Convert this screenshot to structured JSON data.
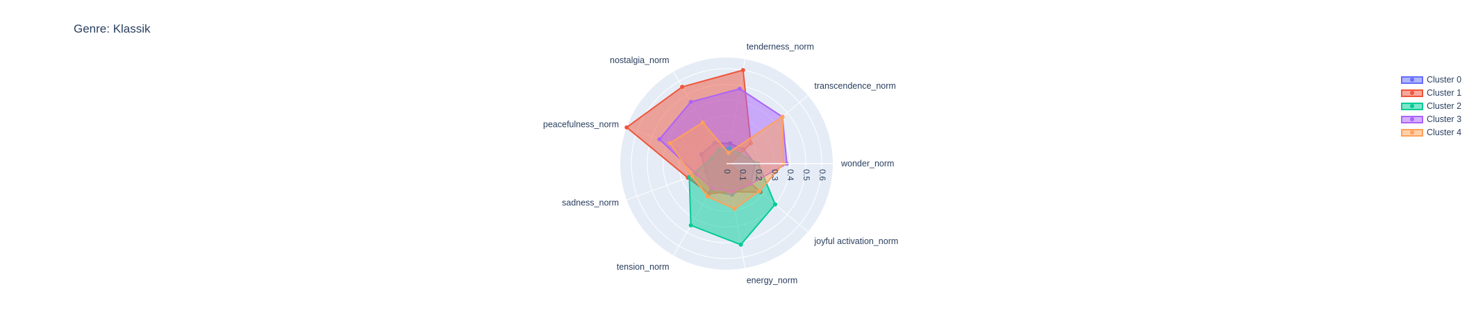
{
  "chart_data": {
    "type": "radar",
    "title": "Genre: Klassik",
    "axes": [
      "wonder_norm",
      "transcendence_norm",
      "tenderness_norm",
      "nostalgia_norm",
      "peacefulness_norm",
      "sadness_norm",
      "tension_norm",
      "energy_norm",
      "joyful activation_norm"
    ],
    "radial_ticks": [
      "0",
      "0.1",
      "0.2",
      "0.3",
      "0.4",
      "0.5",
      "0.6"
    ],
    "radial_range": [
      0,
      0.67
    ],
    "legend_position": "right",
    "series": [
      {
        "name": "Cluster 0",
        "color": "#636efa",
        "values": [
          0.18,
          0.14,
          0.13,
          0.15,
          0.17,
          0.14,
          0.2,
          0.2,
          0.2
        ]
      },
      {
        "name": "Cluster 1",
        "color": "#ef553b",
        "values": [
          0.02,
          0.2,
          0.6,
          0.56,
          0.67,
          0.26,
          0.22,
          0.18,
          0.28
        ]
      },
      {
        "name": "Cluster 2",
        "color": "#00cc96",
        "values": [
          0.2,
          0.1,
          0.1,
          0.1,
          0.1,
          0.25,
          0.45,
          0.52,
          0.4
        ]
      },
      {
        "name": "Cluster 3",
        "color": "#ab63fa",
        "values": [
          0.38,
          0.46,
          0.48,
          0.45,
          0.45,
          0.2,
          0.18,
          0.18,
          0.2
        ]
      },
      {
        "name": "Cluster 4",
        "color": "#ffa15a",
        "values": [
          0.36,
          0.46,
          0.07,
          0.3,
          0.38,
          0.23,
          0.24,
          0.29,
          0.27
        ]
      }
    ]
  }
}
